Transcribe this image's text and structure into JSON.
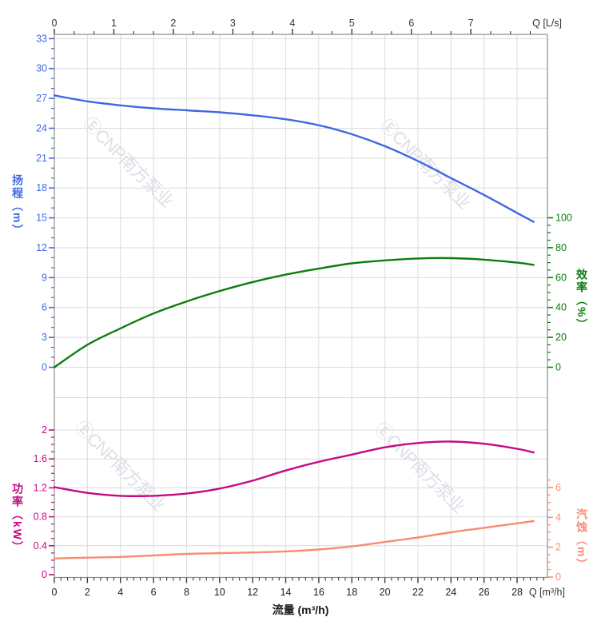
{
  "watermark": {
    "text": "ⒺCNP南方泵业"
  },
  "chart_data": {
    "type": "line",
    "title": "",
    "grid": true,
    "legend": false,
    "x_axis_top": {
      "unit_label": "Q [L/s]",
      "ticks": [
        0,
        1,
        2,
        3,
        4,
        5,
        6,
        7
      ],
      "minor_step_lps": 0.3333,
      "range_lps": [
        0,
        8.28
      ]
    },
    "x_axis_bottom": {
      "label": "流量 (m³/h)",
      "unit_label": "Q [m³/h]",
      "ticks": [
        0,
        2,
        4,
        6,
        8,
        10,
        12,
        14,
        16,
        18,
        20,
        22,
        24,
        26,
        28
      ],
      "minor_step": 0.4,
      "range": [
        0,
        29.83
      ]
    },
    "y_axes": {
      "head": {
        "label": "扬程（m）",
        "unit": "m",
        "color": "#4169E1",
        "ticks": [
          0,
          3,
          6,
          9,
          12,
          15,
          18,
          21,
          24,
          27,
          30,
          33
        ],
        "minor_step": 1,
        "range": [
          0,
          33.4
        ]
      },
      "efficiency": {
        "label": "效率（%）",
        "unit": "%",
        "color": "#0d7d0d",
        "ticks": [
          0,
          20,
          40,
          60,
          80,
          100
        ],
        "minor_step": 5,
        "range": [
          0,
          100
        ]
      },
      "power": {
        "label": "功率（kW）",
        "unit": "kW",
        "color": "#C40A82",
        "ticks": [
          0,
          0.4,
          0.8,
          1.2,
          1.6,
          2
        ],
        "minor_step": 0.1,
        "range": [
          0,
          2.05
        ]
      },
      "npsh": {
        "label": "汽蚀（m）",
        "unit": "m",
        "color": "#F98B72",
        "ticks": [
          0,
          2,
          4,
          6
        ],
        "minor_step": 0.5,
        "range": [
          0,
          6.5
        ]
      }
    },
    "series": [
      {
        "name": "head-curve",
        "axis": "head",
        "color": "#4169E1",
        "x_unit": "m³/h",
        "points": [
          [
            0,
            27.3
          ],
          [
            2,
            26.7
          ],
          [
            4,
            26.3
          ],
          [
            6,
            26.0
          ],
          [
            8,
            25.8
          ],
          [
            10,
            25.6
          ],
          [
            12,
            25.3
          ],
          [
            14,
            24.9
          ],
          [
            16,
            24.3
          ],
          [
            18,
            23.4
          ],
          [
            20,
            22.2
          ],
          [
            22,
            20.7
          ],
          [
            24,
            19.0
          ],
          [
            26,
            17.3
          ],
          [
            28,
            15.5
          ],
          [
            29,
            14.6
          ]
        ]
      },
      {
        "name": "efficiency-curve",
        "axis": "efficiency",
        "color": "#0d7d0d",
        "x_unit": "m³/h",
        "points": [
          [
            0,
            0
          ],
          [
            2,
            15
          ],
          [
            4,
            26
          ],
          [
            6,
            36
          ],
          [
            8,
            44
          ],
          [
            10,
            51
          ],
          [
            12,
            57
          ],
          [
            14,
            62
          ],
          [
            16,
            66
          ],
          [
            18,
            69.5
          ],
          [
            20,
            71.5
          ],
          [
            22,
            72.8
          ],
          [
            24,
            73
          ],
          [
            26,
            72
          ],
          [
            28,
            70
          ],
          [
            29,
            68.5
          ]
        ]
      },
      {
        "name": "power-curve",
        "axis": "power",
        "color": "#C40A82",
        "x_unit": "m³/h",
        "points": [
          [
            0,
            1.21
          ],
          [
            2,
            1.13
          ],
          [
            4,
            1.09
          ],
          [
            6,
            1.09
          ],
          [
            8,
            1.12
          ],
          [
            10,
            1.19
          ],
          [
            12,
            1.3
          ],
          [
            14,
            1.44
          ],
          [
            16,
            1.56
          ],
          [
            18,
            1.66
          ],
          [
            20,
            1.76
          ],
          [
            22,
            1.82
          ],
          [
            24,
            1.84
          ],
          [
            26,
            1.81
          ],
          [
            28,
            1.74
          ],
          [
            29,
            1.69
          ]
        ]
      },
      {
        "name": "npsh-curve",
        "axis": "npsh",
        "color": "#F98B72",
        "x_unit": "m³/h",
        "points": [
          [
            0,
            1.25
          ],
          [
            2,
            1.3
          ],
          [
            4,
            1.35
          ],
          [
            6,
            1.45
          ],
          [
            8,
            1.55
          ],
          [
            10,
            1.6
          ],
          [
            12,
            1.65
          ],
          [
            14,
            1.72
          ],
          [
            16,
            1.85
          ],
          [
            18,
            2.05
          ],
          [
            20,
            2.35
          ],
          [
            22,
            2.65
          ],
          [
            24,
            3.0
          ],
          [
            26,
            3.3
          ],
          [
            28,
            3.6
          ],
          [
            29,
            3.75
          ]
        ]
      }
    ]
  }
}
